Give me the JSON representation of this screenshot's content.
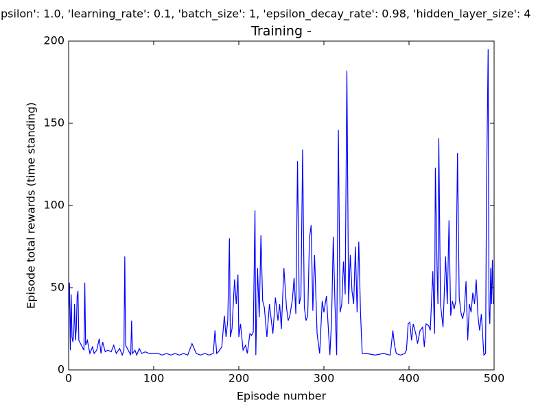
{
  "chart_data": {
    "type": "line",
    "suptitle": "psilon': 1.0, 'learning_rate': 0.1, 'batch_size': 1, 'epsilon_decay_rate': 0.98, 'hidden_layer_size': 4",
    "title": "Training -",
    "xlabel": "Episode number",
    "ylabel": "Episode total rewards (time standing)",
    "xlim": [
      0,
      500
    ],
    "ylim": [
      0,
      200
    ],
    "xticks": [
      0,
      100,
      200,
      300,
      400,
      500
    ],
    "yticks": [
      0,
      50,
      100,
      150,
      200
    ],
    "grid": false,
    "series": [
      {
        "color": "#0000ff",
        "x": [
          0,
          1,
          2,
          3,
          4,
          5,
          6,
          7,
          8,
          9,
          10,
          11,
          12,
          13,
          15,
          18,
          19,
          20,
          22,
          25,
          28,
          30,
          33,
          36,
          38,
          40,
          43,
          46,
          50,
          53,
          56,
          60,
          63,
          65,
          66,
          67,
          70,
          73,
          74,
          75,
          78,
          80,
          83,
          86,
          90,
          95,
          100,
          105,
          110,
          115,
          120,
          125,
          130,
          135,
          140,
          145,
          150,
          155,
          160,
          165,
          170,
          172,
          174,
          176,
          180,
          183,
          185,
          187,
          189,
          190,
          192,
          195,
          197,
          199,
          200,
          202,
          205,
          208,
          210,
          213,
          215,
          217,
          219,
          220,
          222,
          224,
          226,
          228,
          230,
          233,
          236,
          240,
          243,
          246,
          248,
          250,
          253,
          256,
          258,
          260,
          263,
          265,
          267,
          269,
          271,
          273,
          275,
          277,
          279,
          281,
          283,
          285,
          287,
          289,
          292,
          295,
          298,
          300,
          303,
          305,
          307,
          309,
          311,
          313,
          315,
          317,
          319,
          321,
          323,
          325,
          327,
          329,
          331,
          333,
          335,
          337,
          339,
          341,
          343,
          345,
          350,
          360,
          370,
          378,
          381,
          383,
          385,
          390,
          395,
          397,
          399,
          401,
          403,
          405,
          408,
          410,
          413,
          416,
          418,
          420,
          423,
          425,
          428,
          430,
          431,
          433,
          434,
          435,
          437,
          440,
          443,
          445,
          447,
          449,
          451,
          453,
          455,
          457,
          459,
          461,
          463,
          465,
          467,
          469,
          471,
          473,
          475,
          477,
          479,
          481,
          483,
          485,
          488,
          490,
          491,
          493,
          494,
          495,
          496,
          497,
          498,
          499
        ],
        "values": [
          38,
          53,
          12,
          46,
          20,
          17,
          22,
          40,
          18,
          25,
          45,
          48,
          18,
          17,
          15,
          12,
          53,
          15,
          18,
          10,
          14,
          10,
          12,
          19,
          10,
          17,
          11,
          12,
          11,
          15,
          10,
          13,
          9,
          12,
          69,
          15,
          12,
          9,
          30,
          10,
          12,
          9,
          13,
          10,
          11,
          10,
          10,
          10,
          9,
          10,
          9,
          10,
          9,
          10,
          9,
          16,
          10,
          9,
          10,
          9,
          10,
          24,
          10,
          11,
          14,
          33,
          20,
          30,
          80,
          20,
          25,
          55,
          40,
          58,
          20,
          28,
          12,
          15,
          10,
          22,
          21,
          23,
          97,
          9,
          62,
          32,
          82,
          42,
          38,
          20,
          40,
          22,
          44,
          30,
          40,
          25,
          62,
          38,
          30,
          33,
          43,
          56,
          34,
          127,
          40,
          45,
          134,
          38,
          30,
          33,
          80,
          88,
          36,
          70,
          22,
          10,
          42,
          35,
          45,
          27,
          9,
          30,
          81,
          40,
          9,
          146,
          35,
          40,
          66,
          46,
          182,
          40,
          70,
          48,
          40,
          75,
          35,
          78,
          35,
          10,
          10,
          9,
          10,
          9,
          24,
          15,
          10,
          9,
          10,
          12,
          28,
          29,
          18,
          28,
          22,
          16,
          24,
          26,
          14,
          28,
          27,
          24,
          60,
          22,
          123,
          60,
          40,
          141,
          40,
          26,
          69,
          40,
          91,
          33,
          42,
          37,
          42,
          132,
          44,
          35,
          31,
          36,
          54,
          18,
          40,
          35,
          47,
          40,
          55,
          33,
          24,
          34,
          9,
          10,
          104,
          195,
          36,
          28,
          62,
          40,
          67,
          40
        ]
      }
    ]
  }
}
